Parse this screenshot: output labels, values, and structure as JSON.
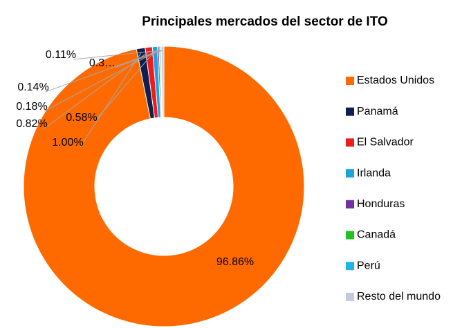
{
  "chart_data": {
    "type": "donut",
    "title": "Principales mercados del sector de ITO",
    "categories": [
      "Estados Unidos",
      "Panamá",
      "El Salvador",
      "Irlanda",
      "Honduras",
      "Canadá",
      "Perú",
      "Resto del mundo"
    ],
    "values": [
      96.86,
      1.0,
      0.82,
      0.58,
      0.18,
      0.14,
      0.11,
      0.31
    ],
    "value_labels": [
      "96.86%",
      "1.00%",
      "0.82%",
      "0.58%",
      "0.18%",
      "0.14%",
      "0.11%",
      "0.3…"
    ],
    "colors": [
      "#ff6a00",
      "#0e2050",
      "#ee1c1c",
      "#1aa3dc",
      "#7030a0",
      "#22c022",
      "#1fb4ea",
      "#c3cadd"
    ],
    "legend": "right"
  }
}
